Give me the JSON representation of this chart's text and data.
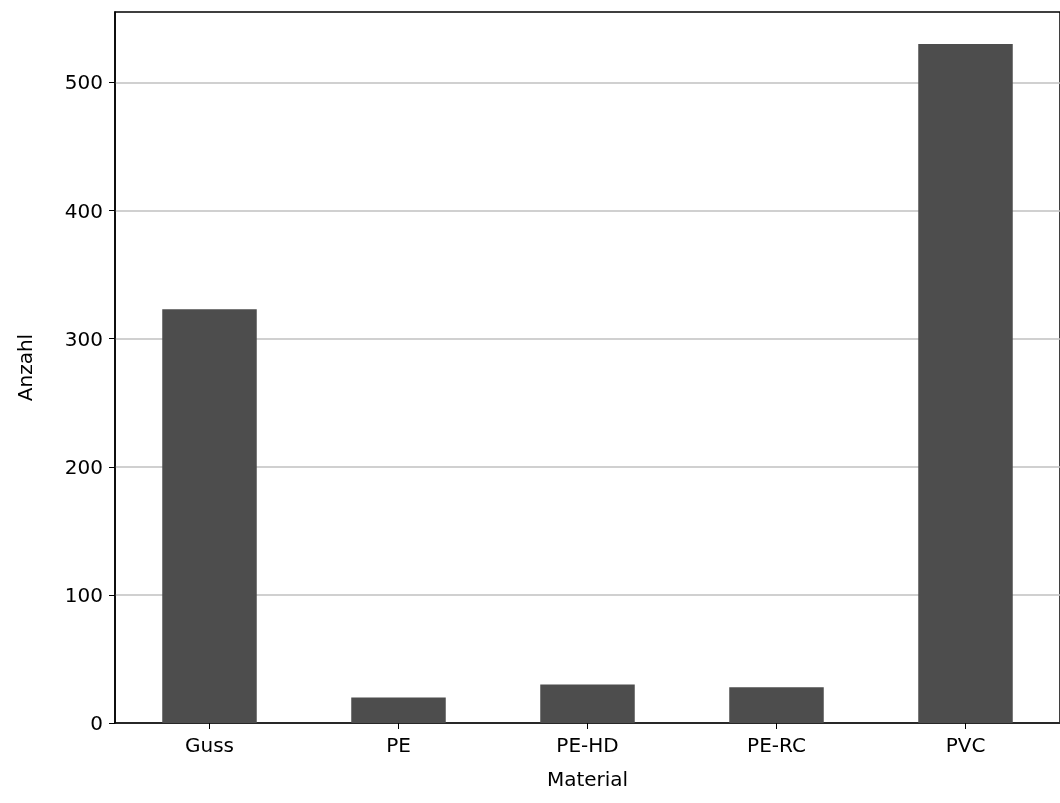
{
  "chart_data": {
    "type": "bar",
    "xlabel": "Material",
    "ylabel": "Anzahl",
    "categories": [
      "Guss",
      "PE",
      "PE-HD",
      "PE-RC",
      "PVC"
    ],
    "values": [
      323,
      20,
      30,
      28,
      530
    ],
    "color": "#4d4d4d",
    "ylim": [
      0,
      555
    ],
    "yticks": [
      0,
      100,
      200,
      300,
      400,
      500
    ],
    "grid": "y"
  }
}
